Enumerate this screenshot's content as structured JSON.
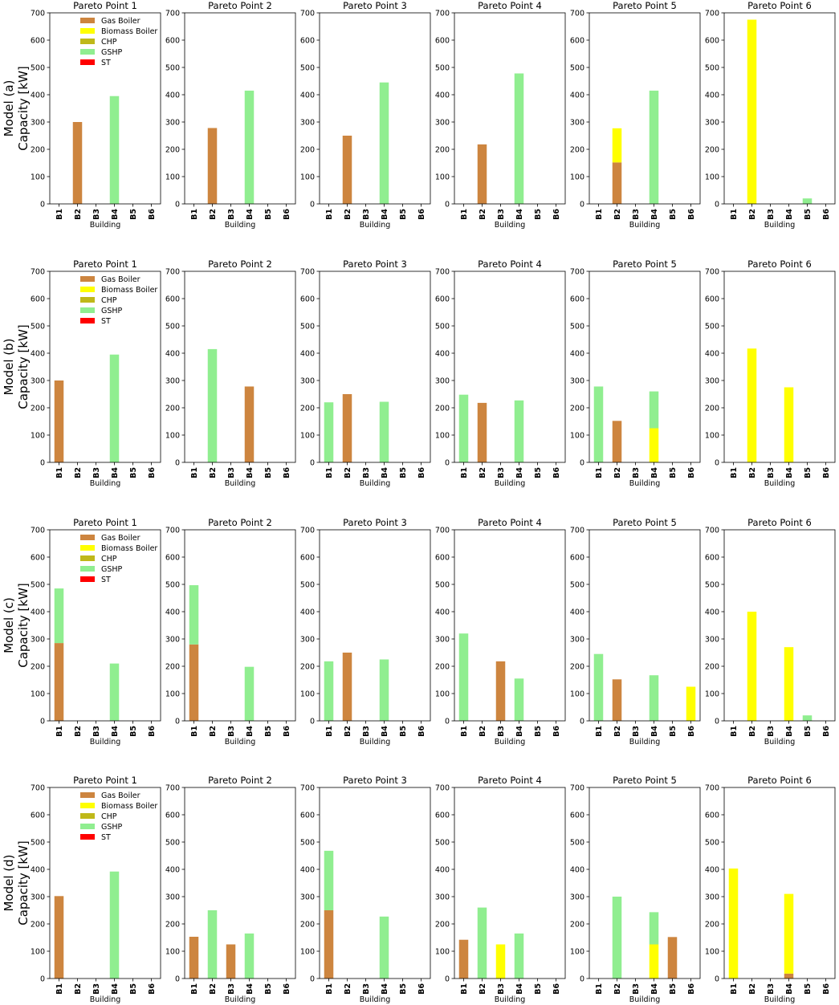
{
  "figure": {
    "rows": [
      {
        "label_line1": "Model (a)",
        "label_line2": "Capacity [kW]"
      },
      {
        "label_line1": "Model (b)",
        "label_line2": "Capacity [kW]"
      },
      {
        "label_line1": "Model (c)",
        "label_line2": "Capacity [kW]"
      },
      {
        "label_line1": "Model (d)",
        "label_line2": "Capacity [kW]"
      }
    ]
  },
  "chart_data": {
    "type": "bar",
    "stacked": true,
    "xlabel": "Building",
    "categories": [
      "B1",
      "B2",
      "B3",
      "B4",
      "B5",
      "B6"
    ],
    "ylim": [
      0,
      700
    ],
    "yticks": [
      0,
      100,
      200,
      300,
      400,
      500,
      600,
      700
    ],
    "legend": {
      "placement": "upper-left (first panel of each row)",
      "items": [
        {
          "name": "Gas Boiler",
          "color": "#CD853F"
        },
        {
          "name": "Biomass Boiler",
          "color": "#FFFF00"
        },
        {
          "name": "CHP",
          "color": "#BFB819"
        },
        {
          "name": "GSHP",
          "color": "#90EE90"
        },
        {
          "name": "ST",
          "color": "#FF0000"
        }
      ]
    },
    "panels": [
      {
        "title": "Pareto Point 1",
        "row": 0,
        "col": 0,
        "bars": [
          {
            "b": 1,
            "stack": [
              [
                "Gas Boiler",
                300
              ]
            ]
          },
          {
            "b": 3,
            "stack": [
              [
                "GSHP",
                395
              ]
            ]
          }
        ]
      },
      {
        "title": "Pareto Point 2",
        "row": 0,
        "col": 1,
        "bars": [
          {
            "b": 1,
            "stack": [
              [
                "Gas Boiler",
                278
              ]
            ]
          },
          {
            "b": 3,
            "stack": [
              [
                "GSHP",
                415
              ]
            ]
          }
        ]
      },
      {
        "title": "Pareto Point 3",
        "row": 0,
        "col": 2,
        "bars": [
          {
            "b": 1,
            "stack": [
              [
                "Gas Boiler",
                250
              ]
            ]
          },
          {
            "b": 3,
            "stack": [
              [
                "GSHP",
                445
              ]
            ]
          }
        ]
      },
      {
        "title": "Pareto Point 4",
        "row": 0,
        "col": 3,
        "bars": [
          {
            "b": 1,
            "stack": [
              [
                "Gas Boiler",
                218
              ]
            ]
          },
          {
            "b": 3,
            "stack": [
              [
                "GSHP",
                478
              ]
            ]
          }
        ]
      },
      {
        "title": "Pareto Point 5",
        "row": 0,
        "col": 4,
        "bars": [
          {
            "b": 1,
            "stack": [
              [
                "Gas Boiler",
                152
              ],
              [
                "Biomass Boiler",
                125
              ]
            ]
          },
          {
            "b": 3,
            "stack": [
              [
                "GSHP",
                415
              ]
            ]
          }
        ]
      },
      {
        "title": "Pareto Point 6",
        "row": 0,
        "col": 5,
        "bars": [
          {
            "b": 1,
            "stack": [
              [
                "Biomass Boiler",
                675
              ]
            ]
          },
          {
            "b": 4,
            "stack": [
              [
                "GSHP",
                20
              ]
            ]
          }
        ]
      },
      {
        "title": "Pareto Point 1",
        "row": 1,
        "col": 0,
        "bars": [
          {
            "b": 0,
            "stack": [
              [
                "Gas Boiler",
                300
              ]
            ]
          },
          {
            "b": 3,
            "stack": [
              [
                "GSHP",
                395
              ]
            ]
          }
        ]
      },
      {
        "title": "Pareto Point 2",
        "row": 1,
        "col": 1,
        "bars": [
          {
            "b": 1,
            "stack": [
              [
                "GSHP",
                415
              ]
            ]
          },
          {
            "b": 3,
            "stack": [
              [
                "Gas Boiler",
                278
              ]
            ]
          }
        ]
      },
      {
        "title": "Pareto Point 3",
        "row": 1,
        "col": 2,
        "bars": [
          {
            "b": 0,
            "stack": [
              [
                "GSHP",
                220
              ]
            ]
          },
          {
            "b": 1,
            "stack": [
              [
                "Gas Boiler",
                250
              ]
            ]
          },
          {
            "b": 3,
            "stack": [
              [
                "GSHP",
                222
              ]
            ]
          }
        ]
      },
      {
        "title": "Pareto Point 4",
        "row": 1,
        "col": 3,
        "bars": [
          {
            "b": 0,
            "stack": [
              [
                "GSHP",
                248
              ]
            ]
          },
          {
            "b": 1,
            "stack": [
              [
                "Gas Boiler",
                218
              ]
            ]
          },
          {
            "b": 3,
            "stack": [
              [
                "GSHP",
                227
              ]
            ]
          }
        ]
      },
      {
        "title": "Pareto Point 5",
        "row": 1,
        "col": 4,
        "bars": [
          {
            "b": 0,
            "stack": [
              [
                "GSHP",
                278
              ]
            ]
          },
          {
            "b": 1,
            "stack": [
              [
                "Gas Boiler",
                152
              ]
            ]
          },
          {
            "b": 3,
            "stack": [
              [
                "Biomass Boiler",
                125
              ],
              [
                "GSHP",
                135
              ]
            ]
          }
        ]
      },
      {
        "title": "Pareto Point 6",
        "row": 1,
        "col": 5,
        "bars": [
          {
            "b": 1,
            "stack": [
              [
                "Biomass Boiler",
                417
              ]
            ]
          },
          {
            "b": 3,
            "stack": [
              [
                "Biomass Boiler",
                275
              ]
            ]
          }
        ]
      },
      {
        "title": "Pareto Point 1",
        "row": 2,
        "col": 0,
        "bars": [
          {
            "b": 0,
            "stack": [
              [
                "Gas Boiler",
                285
              ],
              [
                "GSHP",
                200
              ]
            ]
          },
          {
            "b": 3,
            "stack": [
              [
                "GSHP",
                210
              ]
            ]
          }
        ]
      },
      {
        "title": "Pareto Point 2",
        "row": 2,
        "col": 1,
        "bars": [
          {
            "b": 0,
            "stack": [
              [
                "Gas Boiler",
                280
              ],
              [
                "GSHP",
                217
              ]
            ]
          },
          {
            "b": 3,
            "stack": [
              [
                "GSHP",
                198
              ]
            ]
          }
        ]
      },
      {
        "title": "Pareto Point 3",
        "row": 2,
        "col": 2,
        "bars": [
          {
            "b": 0,
            "stack": [
              [
                "GSHP",
                218
              ]
            ]
          },
          {
            "b": 1,
            "stack": [
              [
                "Gas Boiler",
                250
              ]
            ]
          },
          {
            "b": 3,
            "stack": [
              [
                "GSHP",
                225
              ]
            ]
          }
        ]
      },
      {
        "title": "Pareto Point 4",
        "row": 2,
        "col": 3,
        "bars": [
          {
            "b": 0,
            "stack": [
              [
                "GSHP",
                320
              ]
            ]
          },
          {
            "b": 2,
            "stack": [
              [
                "Gas Boiler",
                218
              ]
            ]
          },
          {
            "b": 3,
            "stack": [
              [
                "GSHP",
                155
              ]
            ]
          }
        ]
      },
      {
        "title": "Pareto Point 5",
        "row": 2,
        "col": 4,
        "bars": [
          {
            "b": 0,
            "stack": [
              [
                "GSHP",
                245
              ]
            ]
          },
          {
            "b": 1,
            "stack": [
              [
                "Gas Boiler",
                152
              ]
            ]
          },
          {
            "b": 3,
            "stack": [
              [
                "GSHP",
                167
              ]
            ]
          },
          {
            "b": 5,
            "stack": [
              [
                "Biomass Boiler",
                125
              ]
            ]
          }
        ]
      },
      {
        "title": "Pareto Point 6",
        "row": 2,
        "col": 5,
        "bars": [
          {
            "b": 1,
            "stack": [
              [
                "Biomass Boiler",
                400
              ]
            ]
          },
          {
            "b": 3,
            "stack": [
              [
                "Biomass Boiler",
                270
              ]
            ]
          },
          {
            "b": 4,
            "stack": [
              [
                "GSHP",
                20
              ]
            ]
          }
        ]
      },
      {
        "title": "Pareto Point 1",
        "row": 3,
        "col": 0,
        "bars": [
          {
            "b": 0,
            "stack": [
              [
                "Gas Boiler",
                302
              ]
            ]
          },
          {
            "b": 3,
            "stack": [
              [
                "GSHP",
                392
              ]
            ]
          }
        ]
      },
      {
        "title": "Pareto Point 2",
        "row": 3,
        "col": 1,
        "bars": [
          {
            "b": 0,
            "stack": [
              [
                "Gas Boiler",
                153
              ]
            ]
          },
          {
            "b": 1,
            "stack": [
              [
                "GSHP",
                250
              ]
            ]
          },
          {
            "b": 2,
            "stack": [
              [
                "Gas Boiler",
                125
              ]
            ]
          },
          {
            "b": 3,
            "stack": [
              [
                "GSHP",
                165
              ]
            ]
          }
        ]
      },
      {
        "title": "Pareto Point 3",
        "row": 3,
        "col": 2,
        "bars": [
          {
            "b": 0,
            "stack": [
              [
                "Gas Boiler",
                250
              ],
              [
                "GSHP",
                218
              ]
            ]
          },
          {
            "b": 3,
            "stack": [
              [
                "GSHP",
                227
              ]
            ]
          }
        ]
      },
      {
        "title": "Pareto Point 4",
        "row": 3,
        "col": 3,
        "bars": [
          {
            "b": 0,
            "stack": [
              [
                "Gas Boiler",
                142
              ]
            ]
          },
          {
            "b": 1,
            "stack": [
              [
                "GSHP",
                260
              ]
            ]
          },
          {
            "b": 2,
            "stack": [
              [
                "Biomass Boiler",
                125
              ]
            ]
          },
          {
            "b": 3,
            "stack": [
              [
                "GSHP",
                165
              ]
            ]
          }
        ]
      },
      {
        "title": "Pareto Point 5",
        "row": 3,
        "col": 4,
        "bars": [
          {
            "b": 1,
            "stack": [
              [
                "GSHP",
                300
              ]
            ]
          },
          {
            "b": 3,
            "stack": [
              [
                "Biomass Boiler",
                125
              ],
              [
                "GSHP",
                118
              ]
            ]
          },
          {
            "b": 4,
            "stack": [
              [
                "Gas Boiler",
                152
              ]
            ]
          }
        ]
      },
      {
        "title": "Pareto Point 6",
        "row": 3,
        "col": 5,
        "bars": [
          {
            "b": 0,
            "stack": [
              [
                "Biomass Boiler",
                403
              ]
            ]
          },
          {
            "b": 3,
            "stack": [
              [
                "Gas Boiler",
                18
              ],
              [
                "Biomass Boiler",
                292
              ]
            ]
          }
        ]
      }
    ]
  }
}
